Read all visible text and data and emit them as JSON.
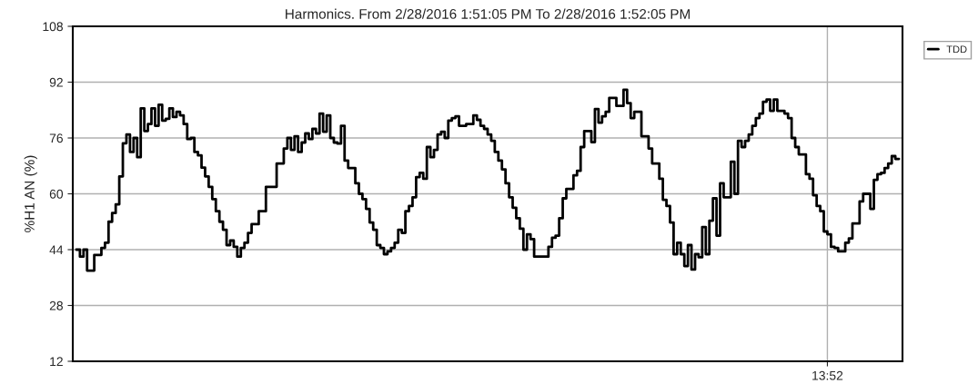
{
  "chart_data": {
    "type": "step",
    "title": "Harmonics. From 2/28/2016 1:51:05 PM To 2/28/2016 1:52:05 PM",
    "ylabel": "%H1 AN (%)",
    "categories": [
      null,
      null,
      null,
      null,
      null,
      null,
      null,
      null,
      null,
      null,
      null,
      null,
      null,
      null,
      null,
      null,
      null,
      null,
      null,
      null,
      null,
      null,
      null,
      null,
      null,
      null,
      null,
      null,
      null,
      null,
      null,
      null,
      null,
      null,
      null,
      null,
      null,
      null,
      null,
      null,
      null,
      null,
      null,
      null,
      null,
      null,
      null,
      null,
      null,
      null,
      null,
      null,
      null,
      null,
      null,
      null,
      null,
      null,
      null,
      null,
      null,
      null,
      null,
      null,
      null,
      null,
      null,
      null,
      null,
      null,
      null,
      null,
      null,
      null,
      null,
      null,
      null,
      null,
      null,
      null,
      null,
      null,
      null,
      null,
      null,
      null,
      null,
      null,
      null,
      null,
      null,
      null,
      null,
      null,
      null,
      null,
      null,
      null,
      null,
      null,
      null,
      null,
      null,
      null,
      null,
      null,
      null,
      null,
      null,
      null,
      null,
      null,
      null,
      null,
      null,
      null,
      null,
      null,
      null,
      null,
      null,
      null,
      null,
      null,
      null,
      null,
      null,
      null,
      null,
      null,
      null,
      null,
      null,
      null,
      null,
      null,
      null,
      null,
      null,
      null,
      null,
      null,
      null,
      null,
      null,
      null,
      null,
      null,
      null,
      null,
      null,
      null,
      null,
      null,
      null,
      null,
      null,
      null,
      null,
      null,
      null,
      null,
      null,
      null,
      null,
      null,
      null,
      null,
      null,
      null,
      null,
      null,
      null,
      null,
      null,
      null,
      null,
      null,
      null,
      null,
      null,
      null,
      null,
      null,
      null,
      null,
      null,
      null,
      null,
      null,
      null,
      null,
      null,
      null,
      null,
      null,
      null,
      null,
      null,
      null,
      null,
      null,
      null,
      null,
      null,
      null,
      null,
      null,
      null,
      null,
      "13:52",
      null,
      null,
      null,
      null,
      null,
      null,
      null,
      null,
      null,
      null,
      null,
      null,
      null,
      null,
      null,
      null,
      null,
      null,
      null,
      null
    ],
    "ylim": [
      12,
      108
    ],
    "yticks": [
      12,
      28,
      44,
      60,
      76,
      92,
      108
    ],
    "grid": true,
    "legend": "top right",
    "series": [
      {
        "name": "TDD",
        "color": "#000000",
        "values": [
          44,
          42,
          44,
          38,
          38,
          42.5,
          42.5,
          44.5,
          46,
          52,
          54.5,
          57,
          65,
          74.5,
          77,
          72,
          76,
          70.5,
          84.5,
          78,
          80,
          84.5,
          79.5,
          85.5,
          81,
          81.5,
          84.5,
          82,
          83.5,
          82.5,
          80,
          75.7,
          76,
          72,
          71,
          67.5,
          65,
          62,
          58.5,
          55,
          52,
          49.7,
          45.3,
          46.6,
          44.8,
          42,
          44.5,
          46,
          48.8,
          51.3,
          51.3,
          55,
          55,
          62,
          62,
          62,
          68.7,
          68.7,
          73,
          76,
          72.6,
          76.5,
          72,
          74.7,
          77.3,
          75.7,
          78.6,
          77.3,
          83,
          77.8,
          82.5,
          76,
          74.7,
          74.4,
          79.5,
          69.5,
          67.4,
          67.4,
          63,
          60,
          58.5,
          55.7,
          51.8,
          49.7,
          45.3,
          44.5,
          42.7,
          43.5,
          44.5,
          46,
          49.7,
          48.8,
          55,
          56.5,
          59,
          64.8,
          66,
          64.3,
          73.4,
          70.5,
          72.6,
          77,
          77.8,
          76,
          81,
          81.7,
          82.2,
          79.5,
          79.5,
          80,
          80,
          82.5,
          81.2,
          79.5,
          78.6,
          77,
          75.2,
          72,
          69.5,
          67,
          63,
          59,
          56,
          53,
          50,
          44,
          48.4,
          47,
          42,
          42,
          42,
          42,
          44.8,
          47.4,
          48,
          53,
          58.7,
          61.4,
          61.4,
          65.3,
          66.6,
          73.4,
          78,
          78,
          74.8,
          84.3,
          80.4,
          82.2,
          83.5,
          87.5,
          87.5,
          85.2,
          85.2,
          89.8,
          86,
          81.7,
          83.5,
          83.5,
          76.5,
          76.5,
          73,
          68.7,
          68.7,
          64.3,
          58.3,
          56.5,
          51.8,
          42.7,
          46,
          42.7,
          39.3,
          45.3,
          38.3,
          42.7,
          41.8,
          50.5,
          42.7,
          52.3,
          58.7,
          48,
          63,
          59,
          59,
          69.2,
          60,
          75.2,
          73.4,
          75.2,
          77,
          79.5,
          81.7,
          83,
          86.4,
          87,
          83.8,
          87,
          83.8,
          83.8,
          83,
          81.7,
          76,
          73.4,
          71.3,
          71.3,
          65.6,
          64.3,
          59.6,
          56.5,
          55,
          49.2,
          48.4,
          44.8,
          44.5,
          43.5,
          43.5,
          46,
          47.2,
          51.5,
          51.5,
          57.8,
          60,
          60,
          55.7,
          64,
          65.6,
          66,
          67.4,
          68.7,
          70.8,
          70,
          70
        ]
      }
    ]
  }
}
